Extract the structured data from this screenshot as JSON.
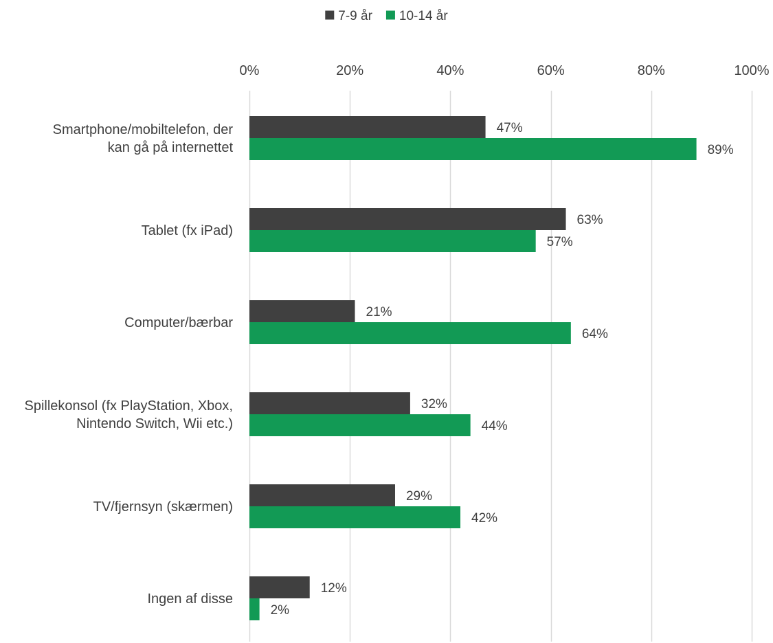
{
  "chart_data": {
    "type": "bar",
    "orientation": "horizontal",
    "categories": [
      [
        "Smartphone/mobiltelefon, der",
        "kan gå på internettet"
      ],
      [
        "Tablet (fx iPad)"
      ],
      [
        "Computer/bærbar"
      ],
      [
        "Spillekonsol (fx PlayStation, Xbox,",
        "Nintendo Switch, Wii etc.)"
      ],
      [
        "TV/fjernsyn (skærmen)"
      ],
      [
        "Ingen af disse"
      ]
    ],
    "series": [
      {
        "name": "7-9 år",
        "color": "#404040",
        "values": [
          47,
          63,
          21,
          32,
          29,
          12
        ],
        "labels": [
          "47%",
          "63%",
          "21%",
          "32%",
          "29%",
          "12%"
        ]
      },
      {
        "name": "10-14 år",
        "color": "#129a55",
        "values": [
          89,
          57,
          64,
          44,
          42,
          2
        ],
        "labels": [
          "89%",
          "57%",
          "64%",
          "44%",
          "42%",
          "2%"
        ]
      }
    ],
    "xlim": [
      0,
      100
    ],
    "ticks": [
      0,
      20,
      40,
      60,
      80,
      100
    ],
    "tick_labels": [
      "0%",
      "20%",
      "40%",
      "60%",
      "80%",
      "100%"
    ],
    "axis_position": "top",
    "grid": true,
    "gridline_color": "#d9d9d9",
    "legend_position": "top-center",
    "title": "",
    "xlabel": "",
    "ylabel": ""
  }
}
